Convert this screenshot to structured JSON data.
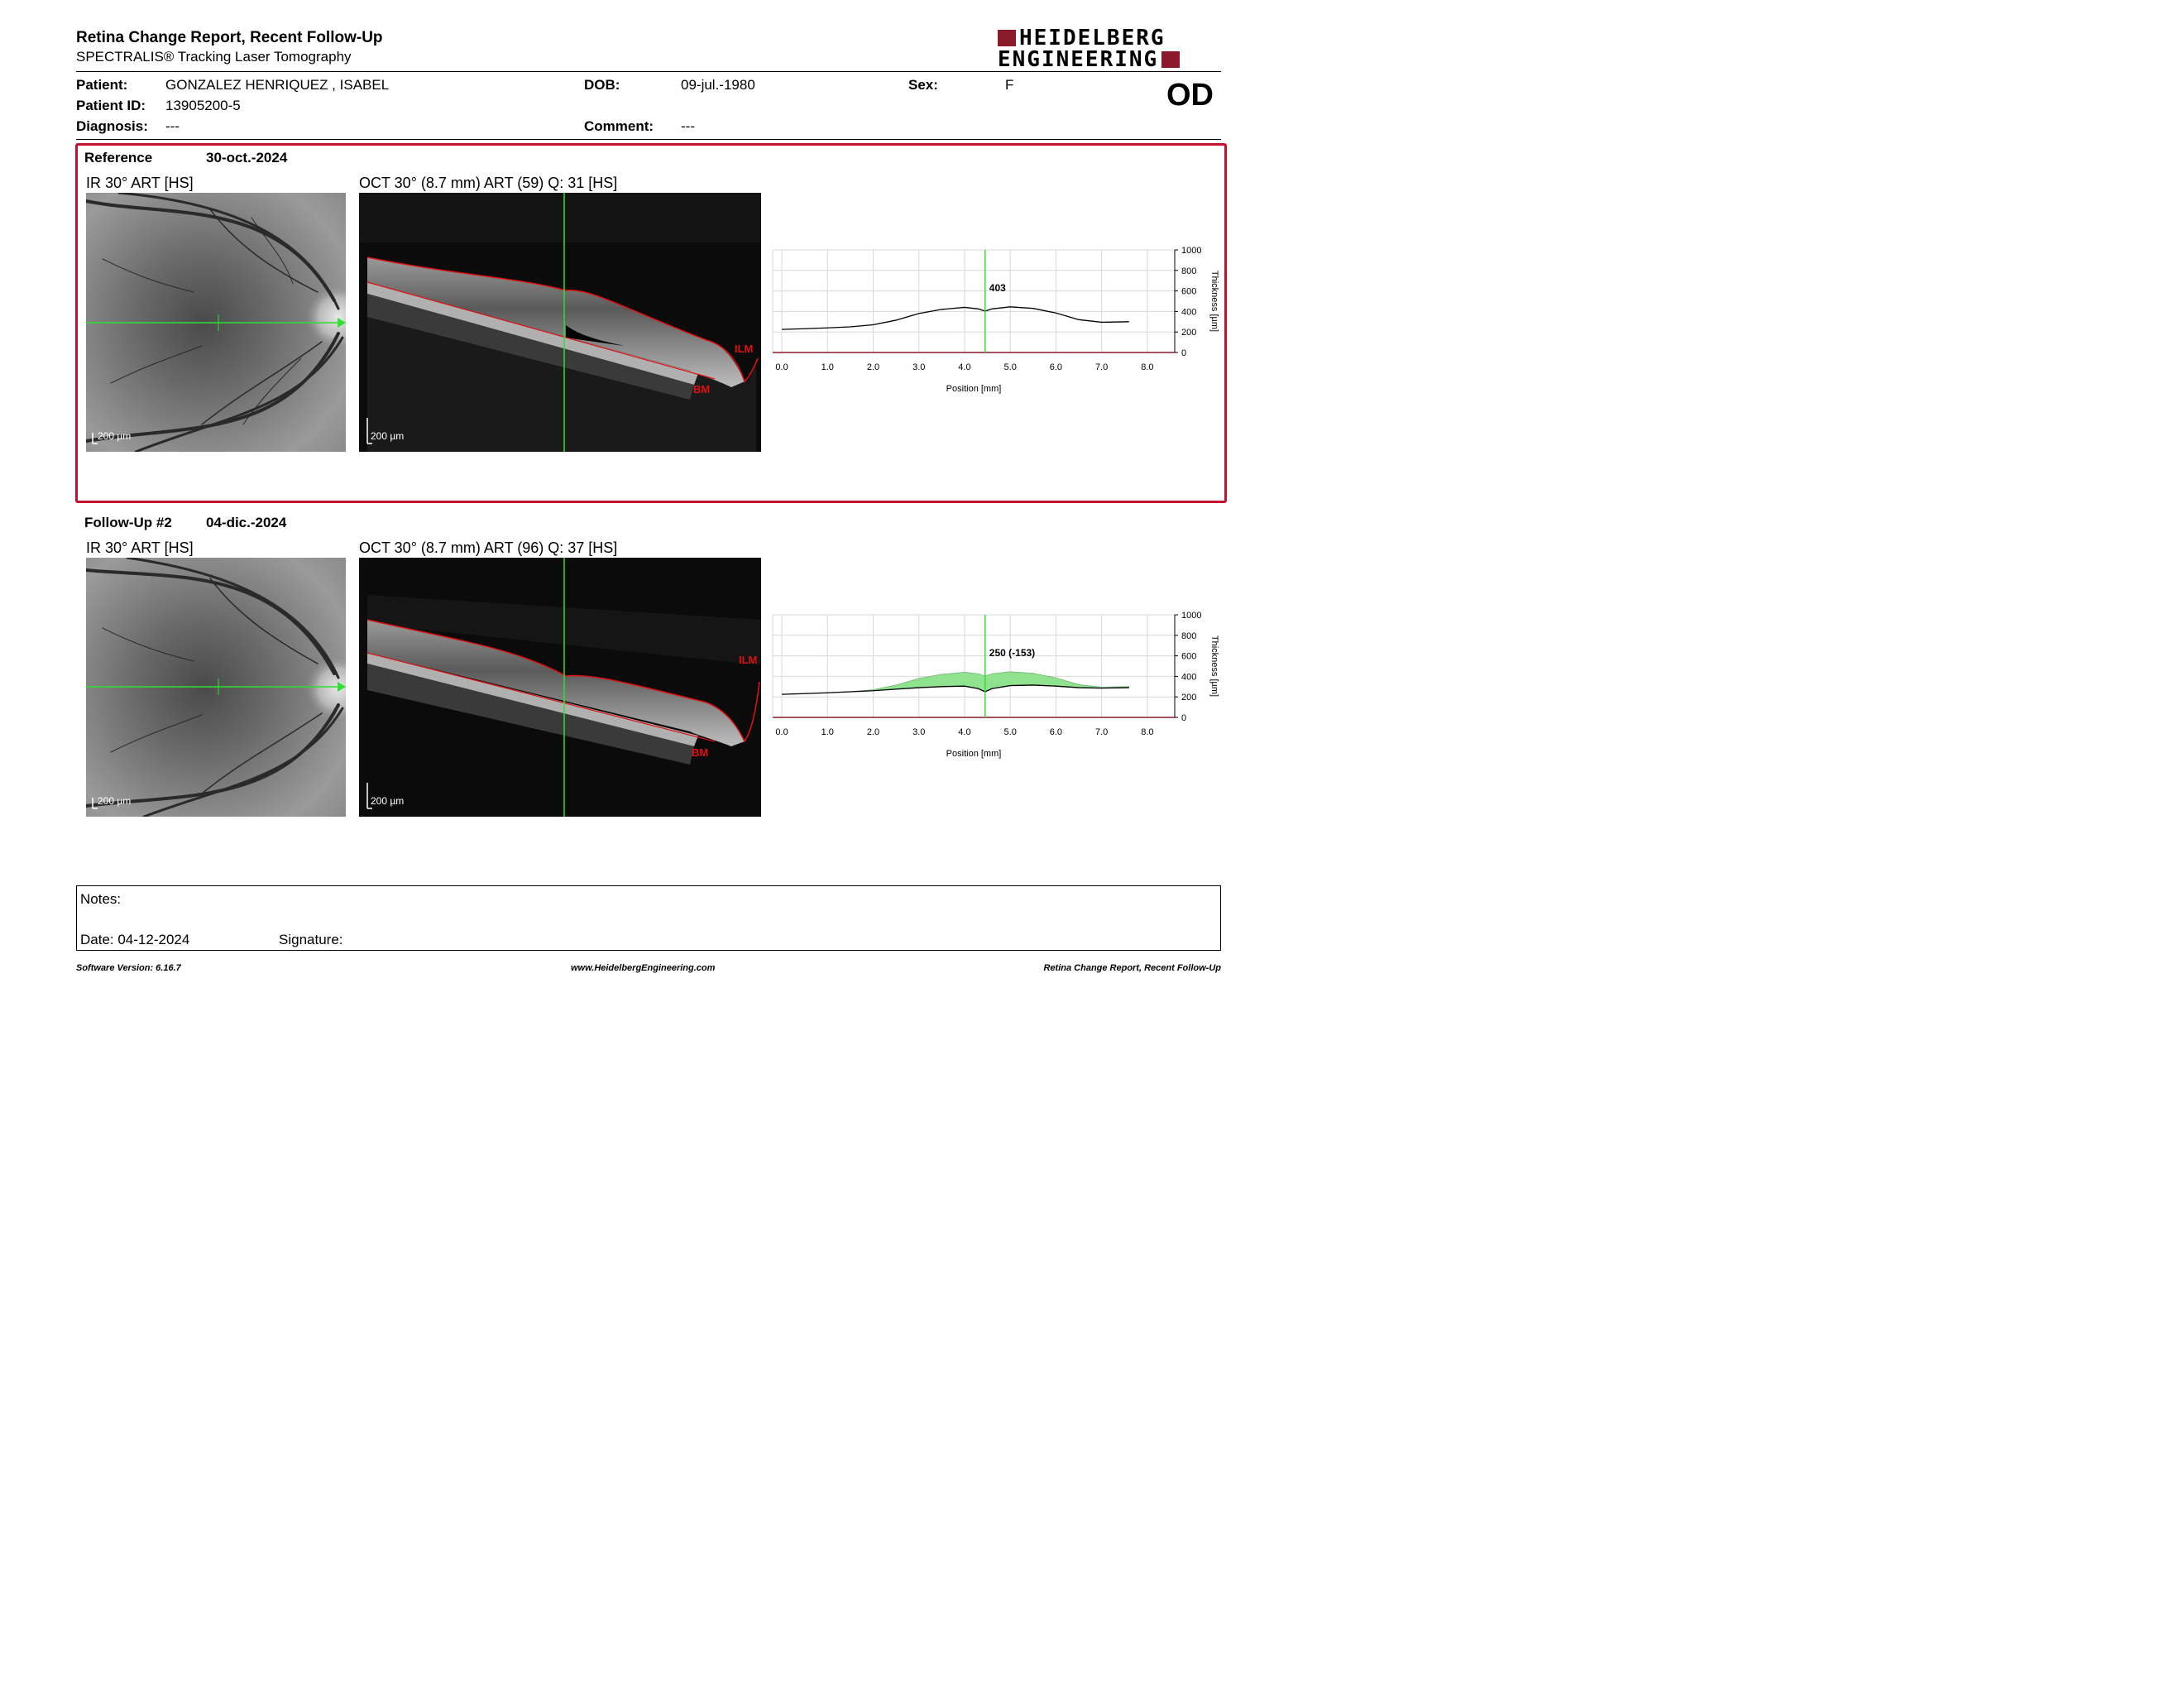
{
  "report": {
    "title": "Retina Change Report, Recent Follow-Up",
    "subtitle": "SPECTRALIS® Tracking Laser Tomography"
  },
  "logo": {
    "line1": "HEIDELBERG",
    "line2": "ENGINEERING",
    "color": "#8b1a2b"
  },
  "patient": {
    "name_label": "Patient:",
    "name": "GONZALEZ HENRIQUEZ , ISABEL",
    "id_label": "Patient ID:",
    "id": "13905200-5",
    "diagnosis_label": "Diagnosis:",
    "diagnosis": "---",
    "dob_label": "DOB:",
    "dob": "09-jul.-1980",
    "comment_label": "Comment:",
    "comment": "---",
    "sex_label": "Sex:",
    "sex": "F",
    "eye": "OD"
  },
  "reference": {
    "label": "Reference",
    "date": "30-oct.-2024",
    "ir_label": "IR 30° ART [HS]",
    "oct_label": "OCT 30° (8.7 mm) ART (59) Q: 31 [HS]",
    "scale_ir": "200 µm",
    "scale_oct": "200 µm",
    "ilm": "ILM",
    "bm": "BM",
    "border_color": "#c8102e"
  },
  "followup": {
    "label": "Follow-Up #2",
    "date": "04-dic.-2024",
    "ir_label": "IR 30° ART [HS]",
    "oct_label": "OCT 30° (8.7 mm) ART (96) Q: 37 [HS]",
    "scale_ir": "200 µm",
    "scale_oct": "200 µm",
    "ilm": "ILM",
    "bm": "BM"
  },
  "chart_data": [
    {
      "type": "line",
      "xlabel": "Position [mm]",
      "ylabel": "Thickness [µm]",
      "xlim": [
        -0.2,
        8.6
      ],
      "ylim": [
        0,
        1000
      ],
      "xticks": [
        "0.0",
        "1.0",
        "2.0",
        "3.0",
        "4.0",
        "5.0",
        "6.0",
        "7.0",
        "8.0"
      ],
      "yticks": [
        "0",
        "200",
        "400",
        "600",
        "800",
        "1000"
      ],
      "grid": true,
      "marker_x": 4.45,
      "marker_label": "403",
      "series": [
        {
          "x": [
            0,
            0.5,
            1.0,
            1.5,
            2.0,
            2.5,
            3.0,
            3.5,
            4.0,
            4.3,
            4.45,
            4.6,
            5.0,
            5.5,
            6.0,
            6.5,
            7.0,
            7.6
          ],
          "values": [
            225,
            232,
            240,
            250,
            270,
            315,
            380,
            420,
            440,
            425,
            403,
            425,
            445,
            430,
            385,
            320,
            295,
            300
          ]
        }
      ]
    },
    {
      "type": "area",
      "xlabel": "Position [mm]",
      "ylabel": "Thickness [µm]",
      "xlim": [
        -0.2,
        8.6
      ],
      "ylim": [
        0,
        1000
      ],
      "xticks": [
        "0.0",
        "1.0",
        "2.0",
        "3.0",
        "4.0",
        "5.0",
        "6.0",
        "7.0",
        "8.0"
      ],
      "yticks": [
        "0",
        "200",
        "400",
        "600",
        "800",
        "1000"
      ],
      "grid": true,
      "marker_x": 4.45,
      "marker_label": "250 (-153)",
      "fill_color": "#8fe38f",
      "series": [
        {
          "x": [
            0,
            0.5,
            1.0,
            1.5,
            2.0,
            2.5,
            3.0,
            3.5,
            4.0,
            4.3,
            4.45,
            4.6,
            5.0,
            5.5,
            6.0,
            6.5,
            7.0,
            7.6
          ],
          "values": [
            225,
            232,
            240,
            250,
            270,
            315,
            380,
            420,
            440,
            425,
            403,
            425,
            445,
            430,
            385,
            320,
            295,
            300
          ]
        },
        {
          "x": [
            0,
            0.5,
            1.0,
            1.5,
            2.0,
            2.5,
            3.0,
            3.5,
            4.0,
            4.3,
            4.45,
            4.6,
            5.0,
            5.5,
            6.0,
            6.5,
            7.0,
            7.6
          ],
          "values": [
            225,
            232,
            240,
            250,
            260,
            275,
            290,
            300,
            305,
            280,
            250,
            280,
            310,
            315,
            305,
            290,
            285,
            290
          ]
        }
      ]
    }
  ],
  "notes": {
    "label": "Notes:",
    "date_label": "Date: 04-12-2024",
    "signature_label": "Signature:"
  },
  "footer": {
    "left": "Software Version: 6.16.7",
    "center": "www.HeidelbergEngineering.com",
    "right": "Retina Change Report, Recent Follow-Up"
  }
}
